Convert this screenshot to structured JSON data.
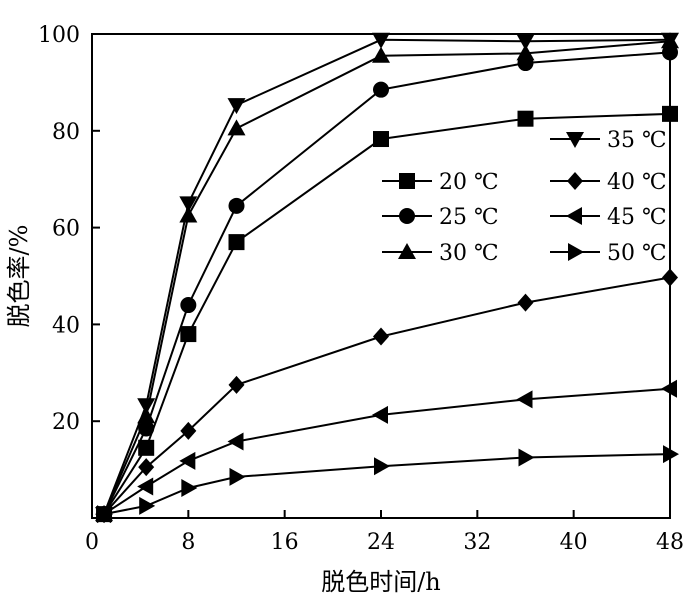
{
  "chart_data": {
    "type": "line",
    "xlabel": "脱色时间/h",
    "ylabel": "脱色率/%",
    "xlim": [
      0,
      48
    ],
    "ylim": [
      0,
      100
    ],
    "xticks": [
      0,
      8,
      16,
      24,
      32,
      40,
      48
    ],
    "yticks": [
      20,
      40,
      60,
      80,
      100
    ],
    "grid": false,
    "legend_position": "right-middle",
    "series": [
      {
        "name": "20 ℃",
        "marker": "square",
        "x": [
          1,
          4.5,
          8,
          12,
          24,
          36,
          48
        ],
        "values": [
          0.8,
          14.5,
          38,
          57,
          78.3,
          82.5,
          83.5
        ]
      },
      {
        "name": "25 ℃",
        "marker": "circle",
        "x": [
          1,
          4.5,
          8,
          12,
          24,
          36,
          48
        ],
        "values": [
          0.8,
          18.5,
          44,
          64.5,
          88.5,
          94,
          96.2
        ]
      },
      {
        "name": "30 ℃",
        "marker": "triangle-up",
        "x": [
          1,
          4.5,
          8,
          12,
          24,
          36,
          48
        ],
        "values": [
          0.8,
          21,
          62.5,
          80.5,
          95.5,
          96,
          98.5
        ]
      },
      {
        "name": "35 ℃",
        "marker": "triangle-down",
        "x": [
          1,
          4.5,
          8,
          12,
          24,
          36,
          48
        ],
        "values": [
          0.8,
          23.3,
          65,
          85.3,
          98.8,
          98.5,
          98.8
        ]
      },
      {
        "name": "40 ℃",
        "marker": "diamond",
        "x": [
          1,
          4.5,
          8,
          12,
          24,
          36,
          48
        ],
        "values": [
          0.8,
          10.5,
          18,
          27.5,
          37.5,
          44.5,
          49.7
        ]
      },
      {
        "name": "45 ℃",
        "marker": "triangle-left",
        "x": [
          1,
          4.5,
          8,
          12,
          24,
          36,
          48
        ],
        "values": [
          0.8,
          6.5,
          11.8,
          15.8,
          21.3,
          24.5,
          26.7
        ]
      },
      {
        "name": "50 ℃",
        "marker": "triangle-right",
        "x": [
          1,
          4.5,
          8,
          12,
          24,
          36,
          48
        ],
        "values": [
          0.8,
          2.5,
          6.2,
          8.5,
          10.7,
          12.5,
          13.2
        ]
      }
    ]
  }
}
